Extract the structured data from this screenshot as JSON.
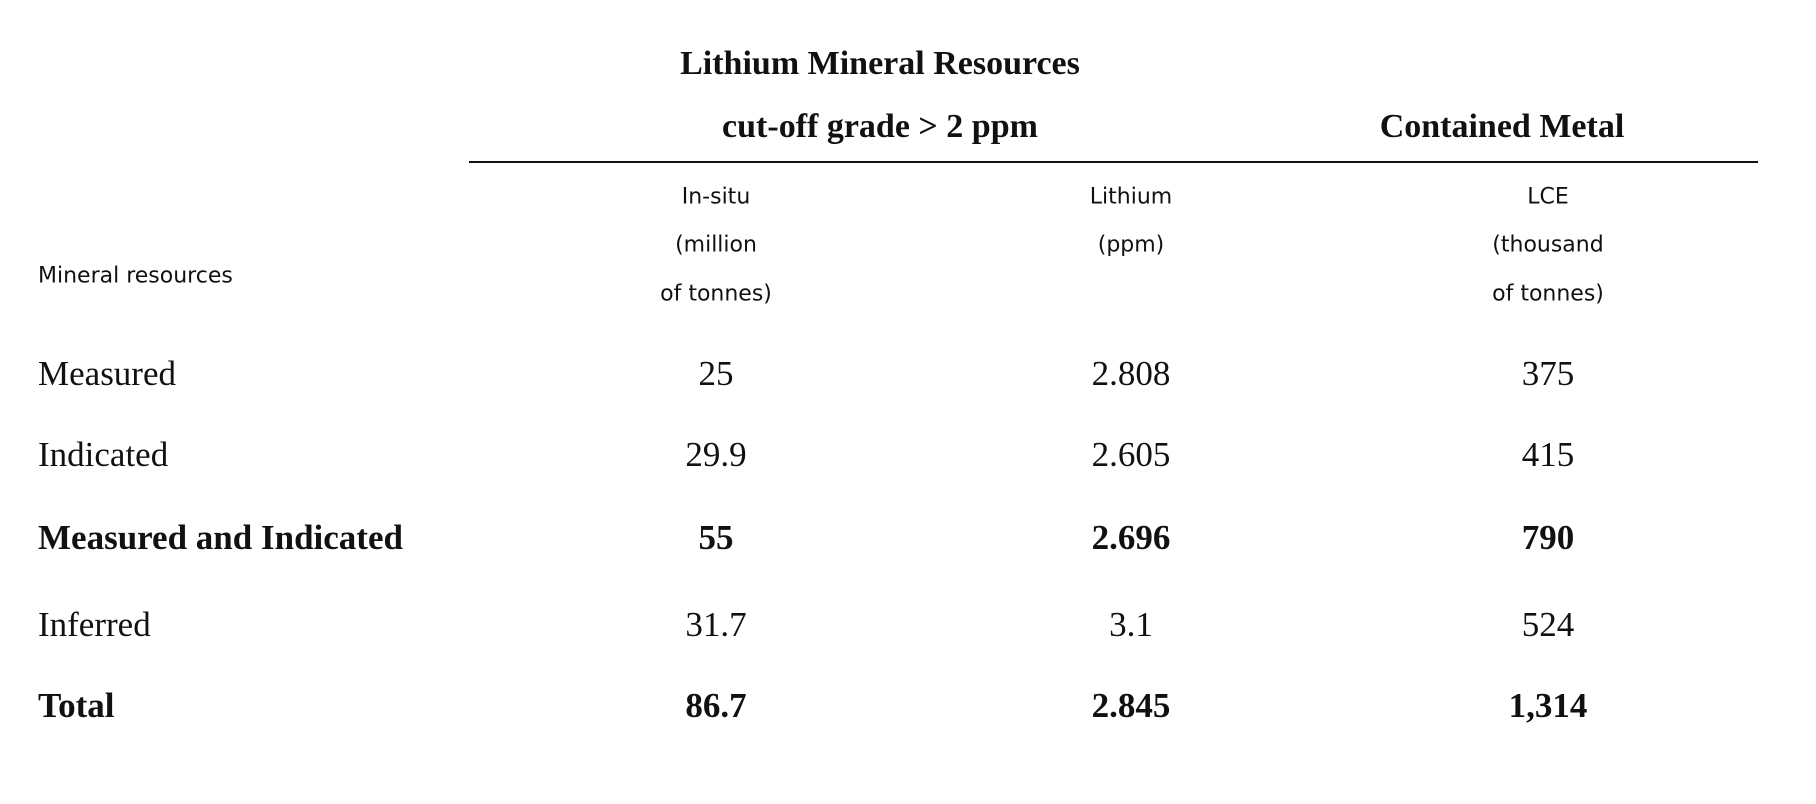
{
  "header": {
    "title": "Lithium Mineral Resources",
    "subtitle_left": "cut-off grade > 2 ppm",
    "subtitle_right": "Contained Metal"
  },
  "table": {
    "row_label_header": "Mineral resources",
    "columns": [
      [
        "In-situ",
        "(million",
        "of tonnes)"
      ],
      [
        "Lithium",
        "(ppm)"
      ],
      [
        "LCE",
        "(thousand",
        "of tonnes)"
      ]
    ],
    "rows": [
      [
        "Measured",
        "25",
        "2.808",
        "375"
      ],
      [
        "Indicated",
        "29.9",
        "2.605",
        "415"
      ],
      [
        "Measured and Indicated",
        "55",
        "2.696",
        "790"
      ],
      [
        "Inferred",
        "31.7",
        "3.1",
        "524"
      ],
      [
        "Total",
        "86.7",
        "2.845",
        "1,314"
      ]
    ]
  }
}
